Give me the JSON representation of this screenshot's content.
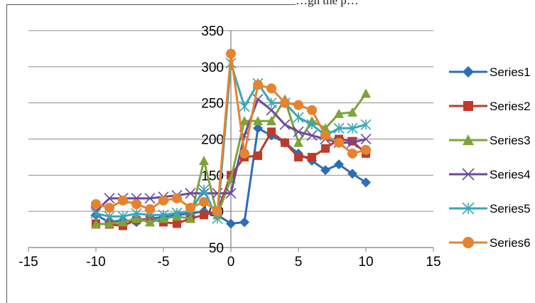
{
  "caption": "…gh the p…",
  "chart_data": {
    "type": "line",
    "title": "",
    "xlabel": "",
    "ylabel": "",
    "xlim": [
      -15,
      15
    ],
    "ylim": [
      50,
      350
    ],
    "x_ticks": [
      -15,
      -10,
      -5,
      0,
      5,
      10,
      15
    ],
    "y_ticks": [
      50,
      100,
      150,
      200,
      250,
      300,
      350
    ],
    "x_tick_labels": [
      "-15",
      "-10",
      "-5",
      "0",
      "5",
      "10",
      "15"
    ],
    "y_tick_labels": [
      "50",
      "100",
      "150",
      "200",
      "250",
      "300",
      "350"
    ],
    "grid": "horizontal",
    "legend_position": "right",
    "x": [
      -10,
      -9,
      -8,
      -7,
      -6,
      -5,
      -4,
      -3,
      -2,
      -1,
      0,
      1,
      2,
      3,
      4,
      5,
      6,
      7,
      8,
      9,
      10
    ],
    "series": [
      {
        "name": "Series1",
        "color": "#2e6db4",
        "marker": "diamond",
        "values": [
          95,
          85,
          88,
          85,
          90,
          92,
          95,
          97,
          100,
          95,
          83,
          85,
          215,
          205,
          195,
          180,
          170,
          157,
          165,
          152,
          140
        ]
      },
      {
        "name": "Series2",
        "color": "#c0392b",
        "marker": "square",
        "values": [
          83,
          82,
          80,
          88,
          90,
          85,
          83,
          90,
          95,
          100,
          150,
          175,
          177,
          210,
          195,
          175,
          175,
          187,
          200,
          197,
          180
        ]
      },
      {
        "name": "Series3",
        "color": "#7ea33a",
        "marker": "triangle",
        "values": [
          82,
          83,
          85,
          90,
          85,
          90,
          93,
          90,
          170,
          95,
          145,
          225,
          225,
          225,
          255,
          195,
          225,
          215,
          235,
          237,
          263
        ]
      },
      {
        "name": "Series4",
        "color": "#6a4a9c",
        "marker": "x",
        "values": [
          100,
          118,
          118,
          118,
          118,
          120,
          122,
          125,
          125,
          125,
          125,
          205,
          255,
          240,
          220,
          210,
          205,
          200,
          195,
          195,
          200
        ]
      },
      {
        "name": "Series5",
        "color": "#3aa6b9",
        "marker": "star",
        "values": [
          97,
          93,
          93,
          97,
          95,
          95,
          98,
          100,
          130,
          90,
          305,
          245,
          277,
          250,
          250,
          230,
          220,
          205,
          215,
          215,
          220
        ]
      },
      {
        "name": "Series6",
        "color": "#e5832e",
        "marker": "circle",
        "values": [
          110,
          105,
          115,
          110,
          103,
          115,
          118,
          105,
          113,
          100,
          318,
          180,
          275,
          270,
          250,
          247,
          240,
          205,
          195,
          180,
          185
        ]
      }
    ]
  }
}
